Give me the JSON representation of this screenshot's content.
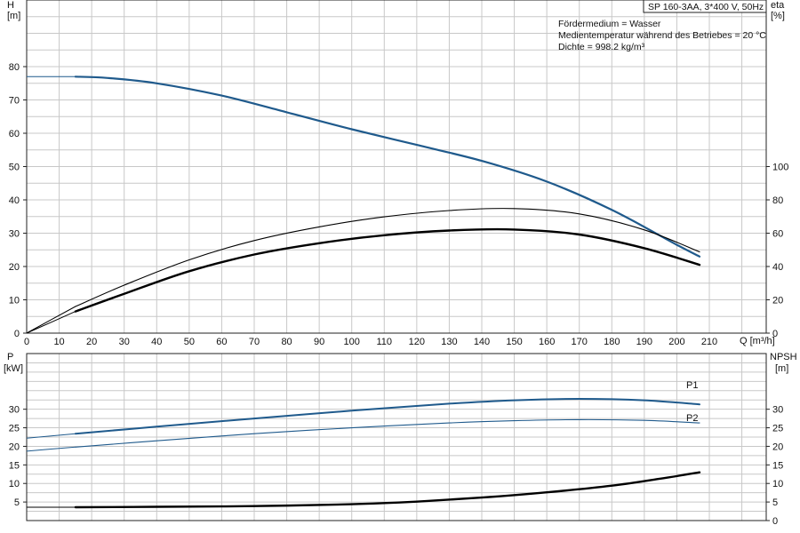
{
  "chart_data": [
    {
      "type": "line",
      "title": "SP 160-3AA, 3*400 V, 50Hz",
      "medium_lines": [
        "Fördermedium = Wasser",
        "Medientemperatur während des Betriebes = 20 °C",
        "Dichte = 998.2 kg/m³"
      ],
      "xlabel": "Q [m³/h]",
      "xlim": [
        0,
        227.5
      ],
      "xticks": [
        0,
        10,
        20,
        30,
        40,
        50,
        60,
        70,
        80,
        90,
        100,
        110,
        120,
        130,
        140,
        150,
        160,
        170,
        180,
        190,
        200,
        210
      ],
      "y_left": {
        "label_top": "H",
        "label_unit": "[m]",
        "ylim": [
          0,
          100
        ],
        "ticks": [
          0,
          10,
          20,
          30,
          40,
          50,
          60,
          70,
          80
        ]
      },
      "y_right": {
        "label_top": "eta",
        "label_unit": "[%]",
        "ylim": [
          0,
          200
        ],
        "ticks": [
          0,
          20,
          40,
          60,
          80,
          100
        ]
      },
      "grid": true,
      "series": [
        {
          "axis": "left",
          "color": "#1f5a8c",
          "width": 2.2,
          "x": [
            0,
            15,
            25,
            40,
            60,
            80,
            100,
            120,
            140,
            160,
            180,
            200,
            207
          ],
          "values": [
            77,
            77,
            76.6,
            75,
            71.3,
            66.3,
            61.2,
            56.5,
            51.7,
            45.5,
            37,
            26.5,
            23
          ],
          "dashed_until": 15
        },
        {
          "axis": "right",
          "color": "#000000",
          "width": 1.1,
          "x": [
            0,
            15,
            30,
            50,
            70,
            90,
            110,
            130,
            150,
            170,
            190,
            207
          ],
          "values": [
            0,
            16,
            28.8,
            44,
            55.6,
            63.8,
            69.8,
            73.6,
            74.8,
            71.6,
            62,
            48.8
          ],
          "dashed_until": 15
        },
        {
          "axis": "right",
          "color": "#000000",
          "width": 2.4,
          "x": [
            0,
            15,
            30,
            50,
            70,
            90,
            110,
            130,
            150,
            170,
            190,
            207
          ],
          "values": [
            0,
            13,
            23.6,
            37.2,
            47.2,
            54,
            58.8,
            61.6,
            62.2,
            59.2,
            51,
            41
          ],
          "dashed_until": 15
        }
      ]
    },
    {
      "type": "line",
      "xlim": [
        0,
        227.5
      ],
      "y_left": {
        "label_top": "P",
        "label_unit": "[kW]",
        "ylim": [
          0,
          45
        ],
        "ticks": [
          5,
          10,
          15,
          20,
          25,
          30
        ]
      },
      "y_right": {
        "label_top": "NPSH",
        "label_unit": "[m]",
        "ylim": [
          0,
          45
        ],
        "ticks": [
          0,
          5,
          10,
          15,
          20,
          25,
          30
        ]
      },
      "grid": true,
      "series": [
        {
          "name": "P1",
          "axis": "left",
          "color": "#1f5a8c",
          "width": 2.0,
          "x": [
            0,
            15,
            40,
            70,
            100,
            130,
            150,
            170,
            190,
            207
          ],
          "values": [
            22.2,
            23.4,
            25.3,
            27.5,
            29.6,
            31.5,
            32.4,
            32.8,
            32.4,
            31.3
          ],
          "dashed_until": 15
        },
        {
          "name": "P2",
          "axis": "left",
          "color": "#1f5a8c",
          "width": 1.1,
          "x": [
            0,
            15,
            40,
            70,
            100,
            130,
            150,
            170,
            190,
            207
          ],
          "values": [
            18.7,
            19.8,
            21.5,
            23.4,
            25,
            26.3,
            26.9,
            27.2,
            27,
            26.3
          ],
          "dashed_until": 15
        },
        {
          "axis": "right",
          "color": "#000000",
          "width": 2.4,
          "x": [
            0,
            15,
            40,
            70,
            100,
            120,
            140,
            160,
            180,
            195,
            207
          ],
          "values": [
            3.6,
            3.6,
            3.7,
            3.9,
            4.4,
            5.1,
            6.2,
            7.6,
            9.4,
            11.3,
            13
          ],
          "dashed_until": 15
        }
      ]
    }
  ]
}
